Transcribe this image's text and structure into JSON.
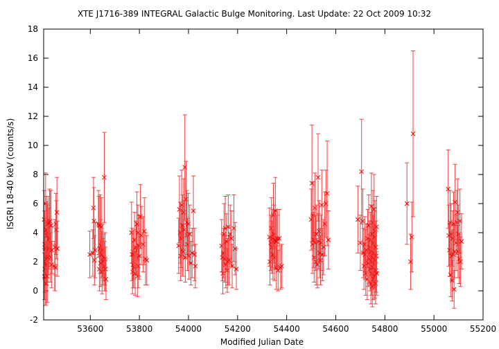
{
  "chart_data": {
    "type": "scatter",
    "title": "XTE J1716-389   INTEGRAL Galactic Bulge Monitoring.  Last Update: 22 Oct 2009 10:32",
    "xlabel": "Modified Julian Date",
    "ylabel": "ISGRI 18-40 keV (counts/s)",
    "xlim": [
      53410,
      55200
    ],
    "ylim": [
      -2,
      18
    ],
    "xticks": [
      53600,
      53800,
      54000,
      54200,
      54400,
      54600,
      54800,
      55000,
      55200
    ],
    "yticks": [
      -2,
      0,
      2,
      4,
      6,
      8,
      10,
      12,
      14,
      16,
      18
    ],
    "grid": false,
    "marker": "x",
    "color": "#ff0000",
    "series": [
      {
        "points": [
          [
            53412,
            4.9,
            2.0
          ],
          [
            53413,
            1.0,
            1.6
          ],
          [
            53414,
            3.2,
            2.3
          ],
          [
            53415,
            1.5,
            1.6
          ],
          [
            53416,
            0.9,
            1.9
          ],
          [
            53417,
            2.9,
            1.8
          ],
          [
            53418,
            6.0,
            2.1
          ],
          [
            53419,
            1.9,
            1.5
          ],
          [
            53420,
            0.5,
            1.5
          ],
          [
            53421,
            4.2,
            2.3
          ],
          [
            53422,
            2.2,
            1.6
          ],
          [
            53423,
            1.8,
            1.4
          ],
          [
            53424,
            3.8,
            2.2
          ],
          [
            53425,
            1.0,
            1.8
          ],
          [
            53426,
            4.0,
            1.9
          ],
          [
            53427,
            2.3,
            1.7
          ],
          [
            53428,
            4.6,
            1.9
          ],
          [
            53430,
            2.9,
            1.8
          ],
          [
            53432,
            3.6,
            2.1
          ],
          [
            53434,
            4.7,
            2.3
          ],
          [
            53436,
            4.8,
            2.1
          ],
          [
            53438,
            2.3,
            1.7
          ],
          [
            53440,
            4.5,
            2.4
          ],
          [
            53442,
            1.8,
            1.6
          ],
          [
            53444,
            2.8,
            1.6
          ],
          [
            53455,
            1.7,
            1.7
          ],
          [
            53456,
            3.0,
            1.9
          ],
          [
            53457,
            1.6,
            1.6
          ],
          [
            53460,
            4.6,
            2.1
          ],
          [
            53462,
            4.2,
            2.0
          ],
          [
            53464,
            5.4,
            2.4
          ],
          [
            53466,
            2.9,
            1.9
          ],
          [
            53598,
            2.5,
            1.6
          ],
          [
            53610,
            2.6,
            1.6
          ],
          [
            53613,
            5.7,
            2.1
          ],
          [
            53615,
            4.8,
            2.3
          ],
          [
            53617,
            2.1,
            1.7
          ],
          [
            53620,
            2.8,
            1.9
          ],
          [
            53633,
            4.6,
            2.3
          ],
          [
            53635,
            4.5,
            2.0
          ],
          [
            53637,
            1.5,
            1.5
          ],
          [
            53639,
            2.9,
            1.7
          ],
          [
            53640,
            4.5,
            2.1
          ],
          [
            53642,
            1.9,
            1.6
          ],
          [
            53644,
            3.1,
            1.8
          ],
          [
            53645,
            4.4,
            2.0
          ],
          [
            53647,
            2.5,
            1.6
          ],
          [
            53648,
            1.3,
            1.5
          ],
          [
            53650,
            2.8,
            1.8
          ],
          [
            53652,
            2.0,
            1.6
          ],
          [
            53655,
            2.3,
            1.6
          ],
          [
            53657,
            7.8,
            3.1
          ],
          [
            53658,
            1.7,
            1.7
          ],
          [
            53660,
            2.2,
            1.8
          ],
          [
            53662,
            1.5,
            1.5
          ],
          [
            53664,
            0.8,
            1.4
          ],
          [
            53768,
            4.0,
            2.1
          ],
          [
            53770,
            2.5,
            1.8
          ],
          [
            53772,
            1.3,
            1.5
          ],
          [
            53774,
            1.8,
            1.6
          ],
          [
            53776,
            2.5,
            1.7
          ],
          [
            53778,
            1.6,
            1.4
          ],
          [
            53780,
            3.5,
            1.9
          ],
          [
            53783,
            1.2,
            1.5
          ],
          [
            53786,
            3.0,
            1.8
          ],
          [
            53788,
            2.8,
            1.7
          ],
          [
            53790,
            4.6,
            2.2
          ],
          [
            53792,
            1.0,
            1.4
          ],
          [
            53794,
            4.0,
            1.9
          ],
          [
            53796,
            1.7,
            1.5
          ],
          [
            53798,
            3.1,
            2.1
          ],
          [
            53800,
            2.4,
            1.6
          ],
          [
            53804,
            5.1,
            2.2
          ],
          [
            53808,
            3.8,
            2.0
          ],
          [
            53815,
            3.2,
            1.9
          ],
          [
            53820,
            4.1,
            2.3
          ],
          [
            53825,
            2.2,
            1.8
          ],
          [
            53830,
            2.1,
            1.7
          ],
          [
            53960,
            3.1,
            1.9
          ],
          [
            53963,
            5.6,
            2.3
          ],
          [
            53966,
            4.0,
            2.1
          ],
          [
            53968,
            2.4,
            1.7
          ],
          [
            53970,
            3.6,
            2.0
          ],
          [
            53972,
            5.9,
            2.4
          ],
          [
            53974,
            2.8,
            1.8
          ],
          [
            53976,
            4.5,
            2.1
          ],
          [
            53978,
            2.7,
            1.7
          ],
          [
            53980,
            5.4,
            2.3
          ],
          [
            53982,
            4.2,
            2.0
          ],
          [
            53985,
            8.5,
            3.6
          ],
          [
            53987,
            2.3,
            1.7
          ],
          [
            53990,
            6.3,
            2.6
          ],
          [
            53993,
            4.7,
            2.2
          ],
          [
            53996,
            3.2,
            1.8
          ],
          [
            53999,
            4.6,
            2.1
          ],
          [
            54002,
            2.4,
            1.6
          ],
          [
            54005,
            3.9,
            2.0
          ],
          [
            54010,
            1.9,
            1.5
          ],
          [
            54015,
            2.6,
            1.7
          ],
          [
            54020,
            5.5,
            2.4
          ],
          [
            54025,
            2.5,
            1.8
          ],
          [
            54028,
            1.7,
            1.5
          ],
          [
            54135,
            3.1,
            1.8
          ],
          [
            54138,
            2.3,
            1.6
          ],
          [
            54140,
            1.2,
            1.4
          ],
          [
            54142,
            2.6,
            1.7
          ],
          [
            54145,
            3.9,
            2.1
          ],
          [
            54148,
            2.2,
            1.6
          ],
          [
            54150,
            4.3,
            2.2
          ],
          [
            54152,
            1.8,
            1.6
          ],
          [
            54155,
            3.4,
            1.9
          ],
          [
            54158,
            1.4,
            1.5
          ],
          [
            54160,
            2.0,
            1.6
          ],
          [
            54162,
            4.4,
            2.2
          ],
          [
            54165,
            2.1,
            1.7
          ],
          [
            54170,
            3.9,
            2.0
          ],
          [
            54175,
            3.6,
            1.9
          ],
          [
            54178,
            1.7,
            1.5
          ],
          [
            54185,
            4.3,
            2.3
          ],
          [
            54190,
            2.9,
            1.8
          ],
          [
            54195,
            1.5,
            1.4
          ],
          [
            54330,
            3.7,
            2.0
          ],
          [
            54332,
            2.0,
            1.6
          ],
          [
            54335,
            3.3,
            1.9
          ],
          [
            54338,
            4.3,
            2.1
          ],
          [
            54340,
            3.0,
            1.8
          ],
          [
            54342,
            3.6,
            2.0
          ],
          [
            54344,
            2.5,
            1.7
          ],
          [
            54346,
            5.2,
            2.2
          ],
          [
            54348,
            3.9,
            2.0
          ],
          [
            54350,
            2.3,
            1.6
          ],
          [
            54352,
            3.5,
            2.0
          ],
          [
            54354,
            5.5,
            2.3
          ],
          [
            54356,
            3.4,
            1.9
          ],
          [
            54358,
            1.6,
            1.5
          ],
          [
            54360,
            3.4,
            1.8
          ],
          [
            54362,
            3.6,
            2.0
          ],
          [
            54365,
            1.4,
            1.4
          ],
          [
            54370,
            3.6,
            2.0
          ],
          [
            54375,
            1.6,
            1.5
          ],
          [
            54380,
            1.7,
            1.5
          ],
          [
            54500,
            4.9,
            2.1
          ],
          [
            54503,
            7.4,
            4.0
          ],
          [
            54505,
            3.2,
            2.0
          ],
          [
            54508,
            5.2,
            2.3
          ],
          [
            54510,
            3.5,
            1.9
          ],
          [
            54512,
            2.3,
            1.7
          ],
          [
            54515,
            5.7,
            2.4
          ],
          [
            54518,
            3.3,
            1.9
          ],
          [
            54520,
            2.0,
            1.6
          ],
          [
            54522,
            3.9,
            2.0
          ],
          [
            54525,
            1.8,
            1.6
          ],
          [
            54528,
            7.8,
            3.0
          ],
          [
            54530,
            3.4,
            1.9
          ],
          [
            54532,
            4.1,
            2.1
          ],
          [
            54535,
            2.6,
            1.7
          ],
          [
            54538,
            2.1,
            1.7
          ],
          [
            54540,
            3.3,
            1.9
          ],
          [
            54543,
            5.9,
            2.4
          ],
          [
            54546,
            2.5,
            1.8
          ],
          [
            54550,
            3.0,
            1.9
          ],
          [
            54555,
            4.6,
            2.2
          ],
          [
            54560,
            6.0,
            2.3
          ],
          [
            54565,
            6.7,
            3.6
          ],
          [
            54570,
            3.5,
            2.0
          ],
          [
            54690,
            4.9,
            2.3
          ],
          [
            54700,
            3.3,
            1.9
          ],
          [
            54705,
            8.2,
            3.6
          ],
          [
            54710,
            4.8,
            2.2
          ],
          [
            54712,
            2.6,
            1.7
          ],
          [
            54715,
            1.7,
            1.6
          ],
          [
            54718,
            3.2,
            1.9
          ],
          [
            54720,
            2.5,
            1.7
          ],
          [
            54722,
            1.2,
            1.5
          ],
          [
            54725,
            2.8,
            1.8
          ],
          [
            54728,
            0.8,
            1.4
          ],
          [
            54730,
            3.6,
            2.0
          ],
          [
            54732,
            1.9,
            1.6
          ],
          [
            54734,
            4.5,
            2.1
          ],
          [
            54736,
            2.2,
            1.7
          ],
          [
            54738,
            3.0,
            1.8
          ],
          [
            54740,
            1.5,
            1.5
          ],
          [
            54742,
            3.5,
            1.9
          ],
          [
            54743,
            0.5,
            1.4
          ],
          [
            54744,
            2.7,
            1.7
          ],
          [
            54745,
            5.8,
            2.3
          ],
          [
            54746,
            1.2,
            1.5
          ],
          [
            54747,
            2.0,
            1.6
          ],
          [
            54748,
            3.9,
            2.0
          ],
          [
            54749,
            0.3,
            1.4
          ],
          [
            54750,
            2.3,
            1.7
          ],
          [
            54751,
            4.7,
            2.2
          ],
          [
            54752,
            1.6,
            1.5
          ],
          [
            54753,
            3.3,
            1.9
          ],
          [
            54754,
            0.8,
            1.4
          ],
          [
            54755,
            2.6,
            1.8
          ],
          [
            54756,
            5.6,
            2.4
          ],
          [
            54757,
            1.8,
            1.6
          ],
          [
            54758,
            3.7,
            2.0
          ],
          [
            54759,
            1.0,
            1.5
          ],
          [
            54760,
            4.1,
            2.1
          ],
          [
            54761,
            2.1,
            1.7
          ],
          [
            54762,
            0.5,
            1.4
          ],
          [
            54763,
            3.0,
            1.8
          ],
          [
            54764,
            1.4,
            1.5
          ],
          [
            54765,
            2.4,
            1.7
          ],
          [
            54766,
            4.4,
            2.1
          ],
          [
            54767,
            1.2,
            1.5
          ],
          [
            54890,
            6.0,
            2.8
          ],
          [
            54905,
            2.0,
            1.9
          ],
          [
            54910,
            3.7,
            2.4
          ],
          [
            54915,
            10.8,
            5.7
          ],
          [
            55058,
            7.0,
            2.7
          ],
          [
            55060,
            3.8,
            2.1
          ],
          [
            55063,
            2.8,
            1.8
          ],
          [
            55066,
            4.7,
            2.2
          ],
          [
            55068,
            1.1,
            1.5
          ],
          [
            55070,
            3.9,
            2.1
          ],
          [
            55072,
            2.4,
            1.7
          ],
          [
            55074,
            0.7,
            1.4
          ],
          [
            55076,
            3.6,
            1.9
          ],
          [
            55078,
            2.5,
            1.7
          ],
          [
            55080,
            4.6,
            2.2
          ],
          [
            55082,
            0.1,
            1.3
          ],
          [
            55084,
            2.7,
            1.8
          ],
          [
            55086,
            6.1,
            2.6
          ],
          [
            55090,
            3.3,
            1.9
          ],
          [
            55094,
            4.7,
            2.2
          ],
          [
            55096,
            5.4,
            2.3
          ],
          [
            55098,
            2.7,
            1.8
          ],
          [
            55100,
            3.9,
            2.0
          ],
          [
            55103,
            2.2,
            1.7
          ],
          [
            55106,
            4.8,
            2.2
          ],
          [
            55108,
            2.0,
            1.7
          ],
          [
            55112,
            3.4,
            1.9
          ]
        ]
      }
    ]
  }
}
